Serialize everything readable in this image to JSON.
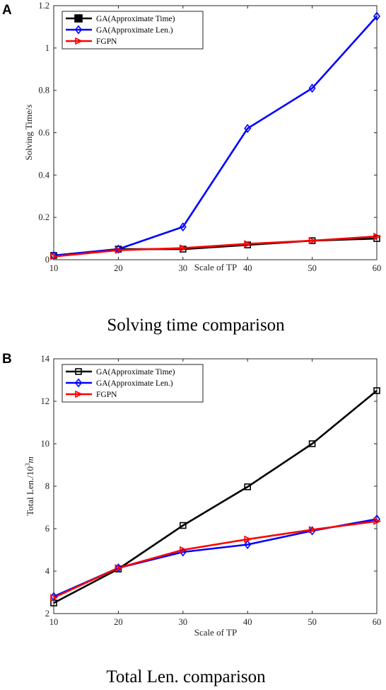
{
  "chart_data": [
    {
      "type": "line",
      "panel": "A",
      "caption": "Solving time comparison",
      "xlabel": "Scale of TP",
      "ylabel": "Solving Time/s",
      "x": [
        10,
        20,
        30,
        40,
        50,
        60
      ],
      "xlim": [
        10,
        60
      ],
      "ylim": [
        0,
        1.2
      ],
      "xticks": [
        "10",
        "20",
        "30",
        "40",
        "50",
        "60"
      ],
      "yticks": [
        "0",
        "0.2",
        "0.4",
        "0.6",
        "0.8",
        "1",
        "1.2"
      ],
      "grid": false,
      "legend_position": "top-left",
      "series": [
        {
          "name": "GA(Approximate Time)",
          "color": "#000000",
          "marker": "square",
          "values": [
            0.02,
            0.05,
            0.05,
            0.07,
            0.09,
            0.1
          ]
        },
        {
          "name": "GA(Approximate Len.)",
          "color": "#0000ff",
          "marker": "diamond",
          "values": [
            0.02,
            0.05,
            0.155,
            0.62,
            0.81,
            1.15
          ]
        },
        {
          "name": "FGPN",
          "color": "#ff0000",
          "marker": "triangle-right",
          "values": [
            0.015,
            0.045,
            0.055,
            0.075,
            0.09,
            0.11
          ]
        }
      ]
    },
    {
      "type": "line",
      "panel": "B",
      "caption": "Total Len. comparison",
      "xlabel": "Scale of TP",
      "ylabel": "Total Len./10^3m",
      "x": [
        10,
        20,
        30,
        40,
        50,
        60
      ],
      "xlim": [
        10,
        60
      ],
      "ylim": [
        2,
        14
      ],
      "xticks": [
        "10",
        "20",
        "30",
        "40",
        "50",
        "60"
      ],
      "yticks": [
        "2",
        "4",
        "6",
        "8",
        "10",
        "12",
        "14"
      ],
      "grid": false,
      "legend_position": "top-left",
      "series": [
        {
          "name": "GA(Approximate Time)",
          "color": "#000000",
          "marker": "square",
          "values": [
            2.5,
            4.1,
            6.15,
            7.97,
            10.0,
            12.5
          ]
        },
        {
          "name": "GA(Approximate Len.)",
          "color": "#0000ff",
          "marker": "diamond",
          "values": [
            2.8,
            4.15,
            4.9,
            5.25,
            5.9,
            6.45
          ]
        },
        {
          "name": "FGPN",
          "color": "#ff0000",
          "marker": "triangle-right",
          "values": [
            2.75,
            4.15,
            5.0,
            5.5,
            5.95,
            6.35
          ]
        }
      ]
    }
  ]
}
